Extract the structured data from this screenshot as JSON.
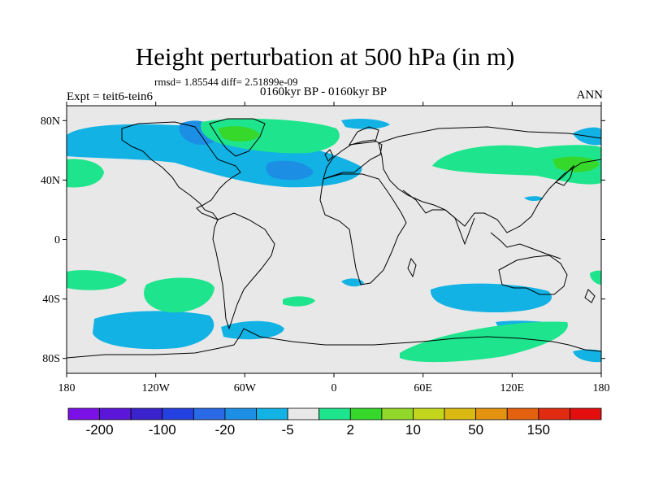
{
  "figure": {
    "title": "Height perturbation at 500 hPa (in m)",
    "stats": "rmsd= 1.85544 diff= 2.51899e-09",
    "experiment": "Expt = teit6-tein6",
    "period": "0160kyr BP - 0160kyr BP",
    "season": "ANN"
  },
  "axes": {
    "x_ticks": [
      "180",
      "120W",
      "60W",
      "0",
      "60E",
      "120E",
      "180"
    ],
    "y_ticks": [
      "80N",
      "40N",
      "0",
      "40S",
      "80S"
    ],
    "lon_range": [
      -180,
      180
    ],
    "lat_range": [
      -90,
      90
    ]
  },
  "colorbar": {
    "colors": [
      "#7b10e6",
      "#5b16d8",
      "#3a22cc",
      "#2440e0",
      "#2a6ae6",
      "#1c8fe4",
      "#12b2e4",
      "#e8e8e8",
      "#1ee58d",
      "#36d82c",
      "#92d82a",
      "#c4d51e",
      "#dbb913",
      "#e39310",
      "#e4610f",
      "#e02b10",
      "#e30f0f"
    ],
    "labels": [
      "-200",
      "-100",
      "-20",
      "-5",
      "2",
      "10",
      "50",
      "150"
    ]
  },
  "map_style": {
    "background": "#e8e8e8",
    "negative_fill": "#12b2e4",
    "negative_strong_fill": "#1c8fe4",
    "positive_fill": "#1ee58d",
    "positive_strong_fill": "#36d82c"
  }
}
